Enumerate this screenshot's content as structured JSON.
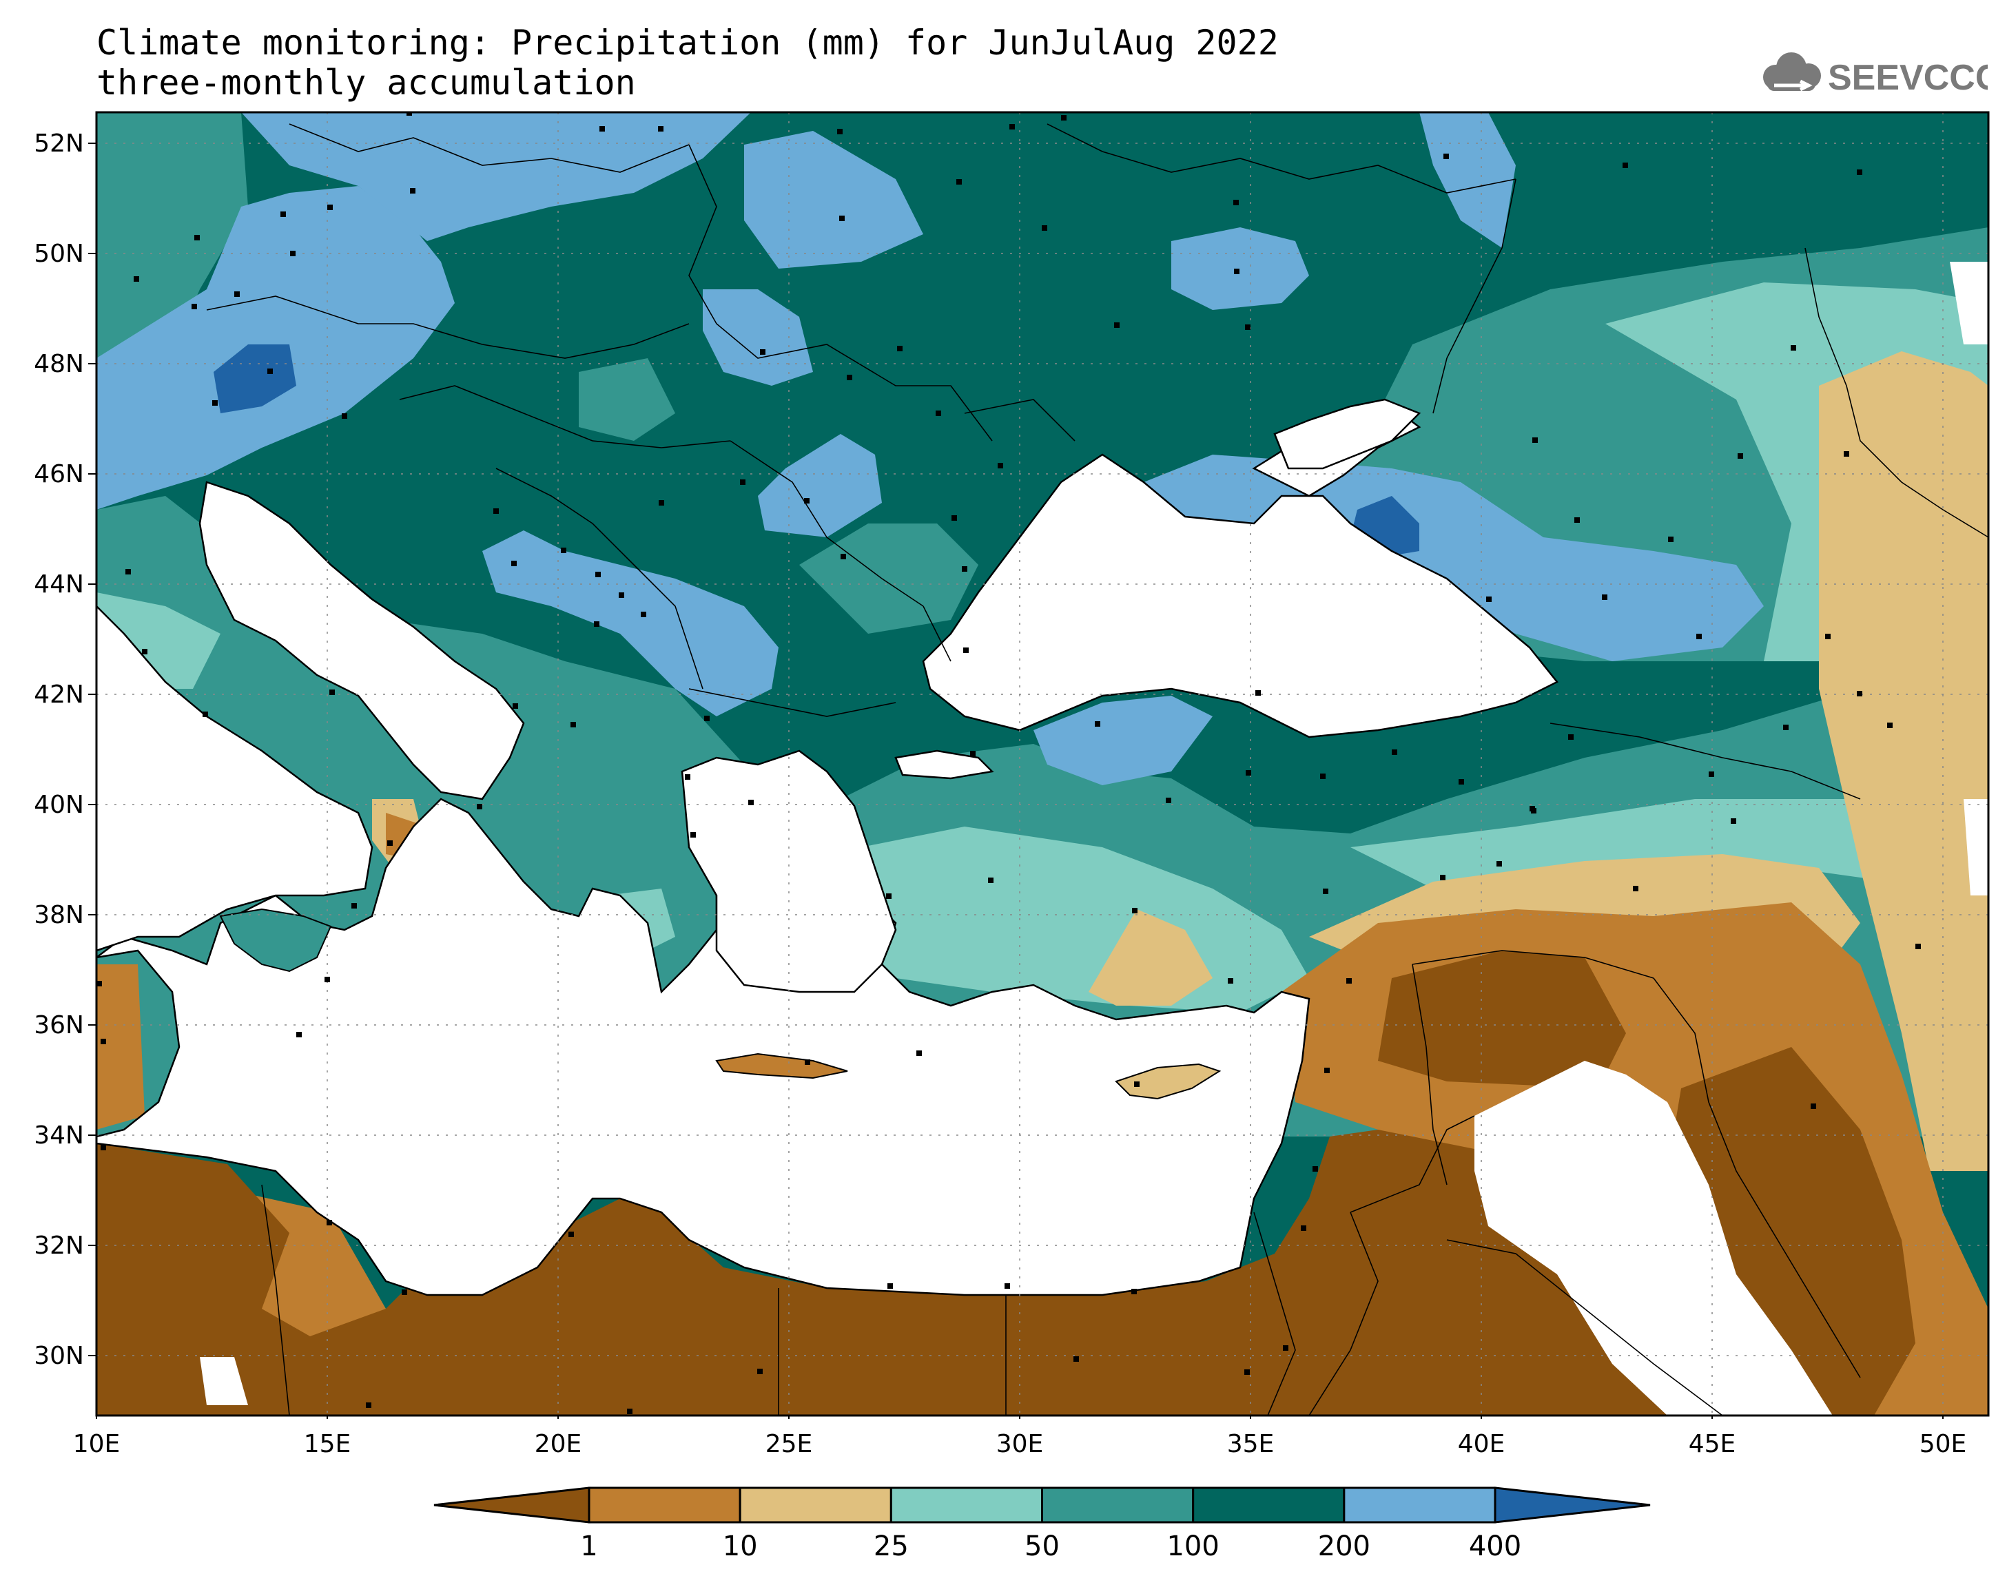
{
  "title_line1": "Climate monitoring: Precipitation (mm) for JunJulAug 2022",
  "title_line2": "three-monthly accumulation",
  "logo_text": "SEEVCCC",
  "map": {
    "lon_ticks": [
      "10E",
      "15E",
      "20E",
      "25E",
      "30E",
      "35E",
      "40E",
      "45E",
      "50E"
    ],
    "lat_ticks": [
      "52N",
      "50N",
      "48N",
      "46N",
      "44N",
      "42N",
      "40N",
      "38N",
      "36N",
      "34N",
      "32N",
      "30N"
    ],
    "lon_range": [
      10,
      51
    ],
    "lat_range": [
      29,
      53
    ],
    "grid": "dotted",
    "colors": {
      "lt1": "#8B520F",
      "1_10": "#BF7E30",
      "10_25": "#E0C07E",
      "25_50": "#80CDC1",
      "50_100": "#35978F",
      "100_200": "#01665E",
      "200_400": "#6BACD8",
      "gt400": "#1F63A5",
      "missing": "#FFFFFF"
    }
  },
  "legend": {
    "thresholds": [
      "1",
      "10",
      "25",
      "50",
      "100",
      "200",
      "400"
    ],
    "colors": [
      "#8B520F",
      "#BF7E30",
      "#E0C07E",
      "#80CDC1",
      "#35978F",
      "#01665E",
      "#6BACD8",
      "#1F63A5"
    ]
  }
}
